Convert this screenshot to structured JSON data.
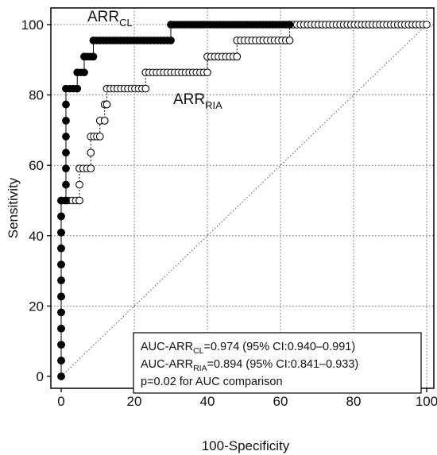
{
  "chart_data": {
    "type": "line",
    "subtype": "ROC step curves",
    "xlabel": "100-Specificity",
    "ylabel": "Sensitivity",
    "xlim": [
      0,
      100
    ],
    "ylim": [
      0,
      100
    ],
    "xticks": [
      0,
      20,
      40,
      60,
      80,
      100
    ],
    "yticks": [
      0,
      20,
      40,
      60,
      80,
      100
    ],
    "grid": "dotted",
    "series": [
      {
        "name_main": "ARR",
        "name_sub": "CL",
        "marker": "filled-circle",
        "color": "#000000",
        "points": [
          [
            0,
            0
          ],
          [
            0,
            4.5
          ],
          [
            0,
            9
          ],
          [
            0,
            13.6
          ],
          [
            0,
            18.2
          ],
          [
            0,
            22.7
          ],
          [
            0,
            27.3
          ],
          [
            0,
            31.8
          ],
          [
            0,
            36.4
          ],
          [
            0,
            40.9
          ],
          [
            0,
            45.5
          ],
          [
            0,
            50
          ],
          [
            1.3,
            50
          ],
          [
            1.3,
            54.5
          ],
          [
            1.3,
            59.1
          ],
          [
            1.3,
            63.6
          ],
          [
            1.3,
            68.2
          ],
          [
            1.3,
            72.7
          ],
          [
            1.3,
            77.3
          ],
          [
            1.3,
            81.8
          ],
          [
            4.4,
            81.8
          ],
          [
            4.4,
            86.4
          ],
          [
            6.3,
            86.4
          ],
          [
            6.3,
            90.9
          ],
          [
            8.8,
            90.9
          ],
          [
            8.8,
            95.5
          ],
          [
            30.0,
            95.5
          ],
          [
            30.0,
            100
          ],
          [
            62.5,
            100
          ]
        ]
      },
      {
        "name_main": "ARR",
        "name_sub": "RIA",
        "marker": "open-circle",
        "color": "#000000",
        "points": [
          [
            0,
            0
          ],
          [
            0,
            4.5
          ],
          [
            0,
            9
          ],
          [
            0,
            13.6
          ],
          [
            0,
            18.2
          ],
          [
            0,
            22.7
          ],
          [
            0,
            27.3
          ],
          [
            0,
            31.8
          ],
          [
            0,
            36.4
          ],
          [
            0,
            40.9
          ],
          [
            0,
            45.5
          ],
          [
            0,
            50
          ],
          [
            5.0,
            50
          ],
          [
            5.0,
            54.5
          ],
          [
            5.0,
            59.1
          ],
          [
            8.1,
            59.1
          ],
          [
            8.1,
            63.6
          ],
          [
            8.1,
            68.2
          ],
          [
            10.6,
            68.2
          ],
          [
            10.6,
            72.7
          ],
          [
            11.9,
            72.7
          ],
          [
            11.9,
            77.3
          ],
          [
            12.5,
            77.3
          ],
          [
            12.5,
            81.8
          ],
          [
            23.1,
            81.8
          ],
          [
            23.1,
            86.4
          ],
          [
            40.0,
            86.4
          ],
          [
            40.0,
            90.9
          ],
          [
            48.1,
            90.9
          ],
          [
            48.1,
            95.5
          ],
          [
            62.5,
            95.5
          ],
          [
            62.5,
            100
          ],
          [
            100,
            100
          ]
        ]
      }
    ],
    "reference_line": {
      "from": [
        0,
        0
      ],
      "to": [
        100,
        100
      ],
      "style": "dotted"
    },
    "annotations": [
      {
        "pre": "AUC-ARR",
        "sub": "CL",
        "post": "=0.974 (95% CI:0.940–0.991)"
      },
      {
        "pre": "AUC-ARR",
        "sub": "RIA",
        "post": "=0.894 (95% CI:0.841–0.933)"
      },
      {
        "pre": "p=0.02 for AUC comparison",
        "sub": "",
        "post": ""
      }
    ],
    "legend": "inline labels near curves; statistics box at bottom-right"
  }
}
